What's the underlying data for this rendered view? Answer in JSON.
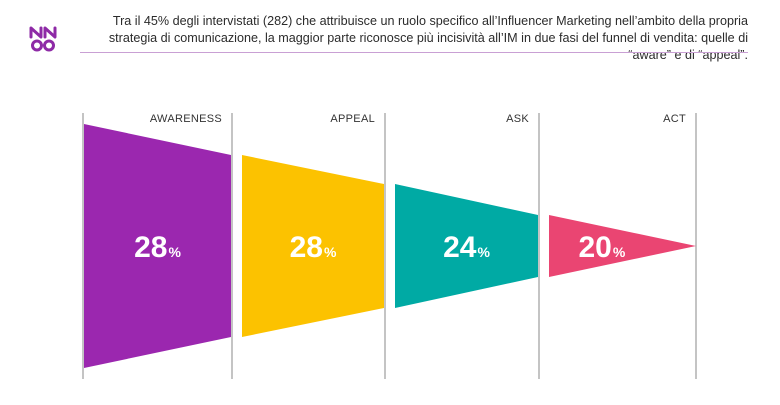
{
  "header": {
    "logo_icon": "nm-brand-logo-icon",
    "intro_text": "Tra il 45% degli intervistati (282) che attribuisce un ruolo specifico all’Influencer Marketing nell’ambito della propria strategia di comunicazione, la maggior parte riconosce più incisività all’IM in due fasi del funnel di vendita: quelle di “aware” e di “appeal”."
  },
  "chart_data": {
    "type": "funnel",
    "unit": "%",
    "stages": [
      {
        "label": "AWARENESS",
        "value": 28,
        "color": "#9b27af"
      },
      {
        "label": "APPEAL",
        "value": 28,
        "color": "#fcc200"
      },
      {
        "label": "ASK",
        "value": 24,
        "color": "#00aaa4"
      },
      {
        "label": "ACT",
        "value": 20,
        "color": "#ea4572"
      }
    ]
  }
}
